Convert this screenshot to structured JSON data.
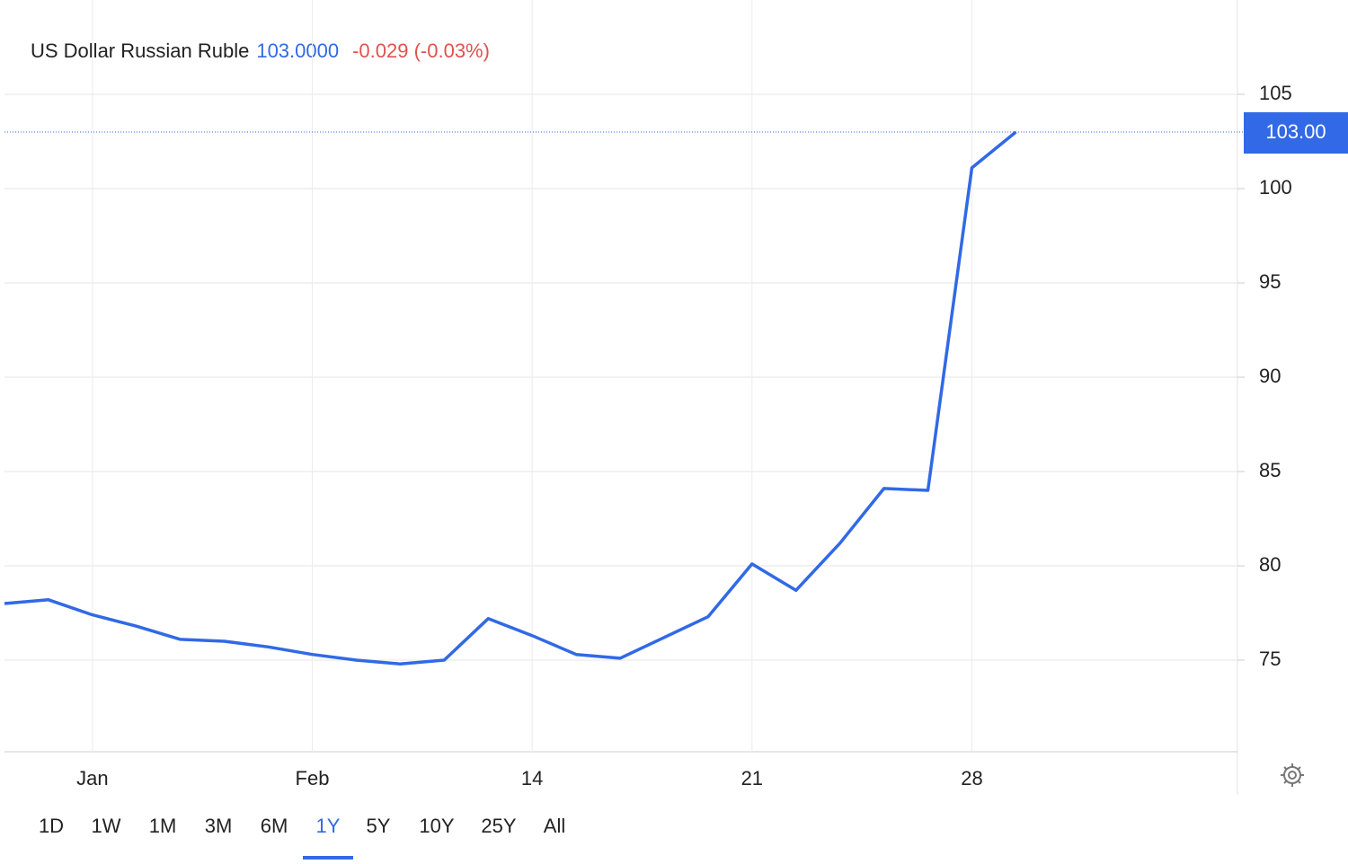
{
  "chart_data": {
    "type": "line",
    "title": "US Dollar Russian Ruble",
    "price": "103.0000",
    "change": "-0.029 (-0.03%)",
    "last_price_label": "103.00",
    "categories": [
      null,
      null,
      "Jan",
      null,
      null,
      null,
      null,
      "Feb",
      null,
      null,
      null,
      null,
      "14",
      null,
      null,
      null,
      null,
      "21",
      null,
      null,
      null,
      null,
      "28",
      null
    ],
    "values": [
      78.0,
      78.2,
      77.4,
      76.8,
      76.1,
      76.0,
      75.7,
      75.3,
      75.0,
      74.8,
      75.0,
      77.2,
      76.3,
      75.3,
      75.1,
      76.2,
      77.3,
      80.1,
      78.7,
      81.2,
      84.1,
      84.0,
      101.1,
      103.0
    ],
    "color": "#3169e6",
    "ylim": [
      70,
      110
    ],
    "yticks": [
      75,
      80,
      85,
      90,
      95,
      100,
      105
    ],
    "grid": true,
    "range_buttons": [
      "1D",
      "1W",
      "1M",
      "3M",
      "6M",
      "1Y",
      "5Y",
      "10Y",
      "25Y",
      "All"
    ],
    "active_range": "1Y"
  }
}
